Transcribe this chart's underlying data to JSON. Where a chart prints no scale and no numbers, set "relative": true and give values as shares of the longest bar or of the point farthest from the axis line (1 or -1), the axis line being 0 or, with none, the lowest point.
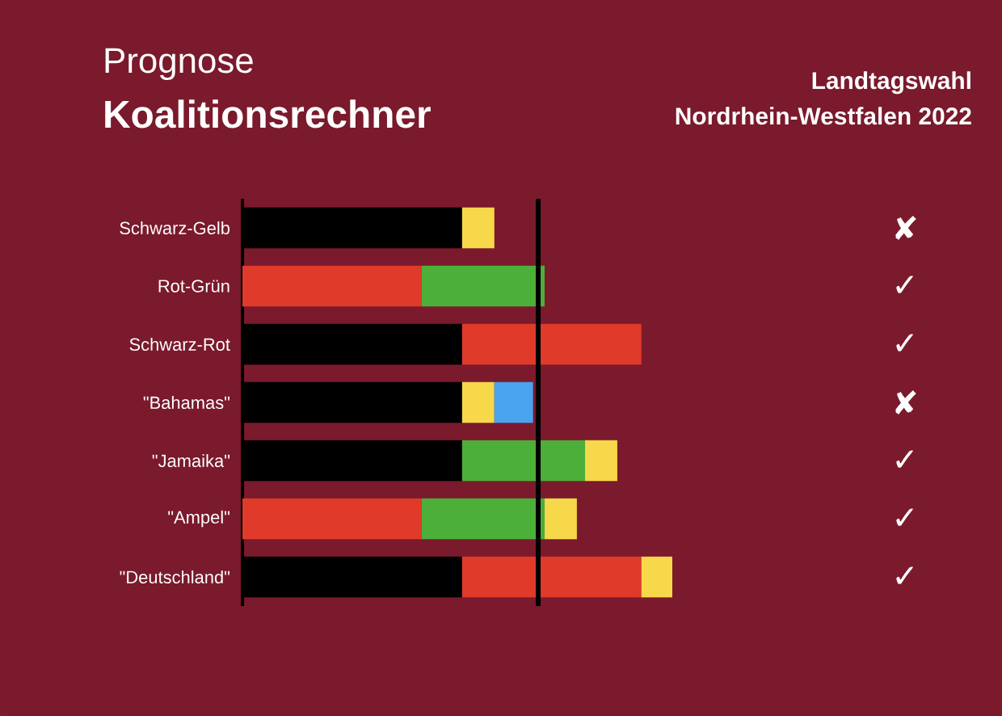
{
  "chart_data": {
    "type": "bar",
    "orientation": "horizontal",
    "stacked": true,
    "relative": true,
    "title": "Prognose",
    "subtitle": "Koalitionsrechner",
    "categories": [
      "Schwarz-Gelb",
      "Rot-Grün",
      "Schwarz-Rot",
      "\"Bahamas\"",
      "\"Jamaika\"",
      "\"Ampel\"",
      "\"Deutschland\""
    ],
    "series": [
      {
        "values": [
          0.511,
          0.417,
          0.511,
          0.511,
          0.511,
          0.417,
          0.511
        ],
        "colors": [
          "#000000",
          "#e03a2a",
          "#000000",
          "#000000",
          "#000000",
          "#e03a2a",
          "#000000"
        ]
      },
      {
        "values": [
          0.075,
          0.286,
          0.417,
          0.075,
          0.286,
          0.286,
          0.417
        ],
        "colors": [
          "#f7d84a",
          "#4caf3a",
          "#e03a2a",
          "#f7d84a",
          "#4caf3a",
          "#4caf3a",
          "#e03a2a"
        ]
      },
      {
        "values": [
          null,
          null,
          null,
          0.09,
          0.075,
          0.075,
          0.072
        ],
        "colors": [
          null,
          null,
          null,
          "#4aa3ef",
          "#f7d84a",
          "#f7d84a",
          "#f7d84a"
        ]
      }
    ],
    "ref_lines": [
      {
        "axis": "x",
        "value": 0.688,
        "color": "#000000"
      }
    ],
    "annotations": [
      "Landtagswahl",
      "Nordrhein-Westfalen 2022",
      "✘",
      "✓",
      "✓",
      "✘",
      "✓",
      "✓",
      "✓"
    ]
  }
}
